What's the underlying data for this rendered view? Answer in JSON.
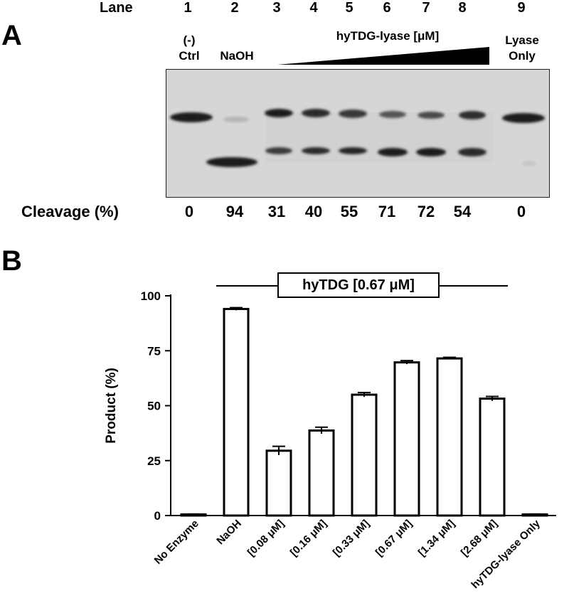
{
  "panel_a": {
    "letter": "A",
    "lane_header": "Lane",
    "lanes": [
      "1",
      "2",
      "3",
      "4",
      "5",
      "6",
      "7",
      "8",
      "9"
    ],
    "ctrl_label_top": "(-)",
    "ctrl_label_bottom": "Ctrl",
    "naoh_label": "NaOH",
    "gradient_label": "hyTDG-lyase [μM]",
    "lyase_label_top": "Lyase",
    "lyase_label_bottom": "Only",
    "cleavage_header": "Cleavage (%)",
    "cleavage_values": [
      "0",
      "94",
      "31",
      "40",
      "55",
      "71",
      "72",
      "54",
      "0"
    ]
  },
  "panel_b": {
    "letter": "B",
    "bracket_label": "hyTDG [0.67 μM]"
  },
  "chart_data": {
    "type": "bar",
    "ylabel": "Product  (%)",
    "ylim": [
      0,
      100
    ],
    "yticks": [
      "0",
      "25",
      "50",
      "75",
      "100"
    ],
    "categories": [
      "No Enzyme",
      "NaOH",
      "[0.08 μM]",
      "[0.16 μM]",
      "[0.33 μM]",
      "[0.67 μM]",
      "[1.34 μM]",
      "[2.68 μM]",
      "hyTDG-lyase Only"
    ],
    "values": [
      0.5,
      94,
      29.5,
      38.7,
      55,
      69.7,
      71.5,
      53.2,
      0.5
    ],
    "errors": [
      0.2,
      0.6,
      2.0,
      1.5,
      1.0,
      0.8,
      0.5,
      1.0,
      0.2
    ]
  }
}
